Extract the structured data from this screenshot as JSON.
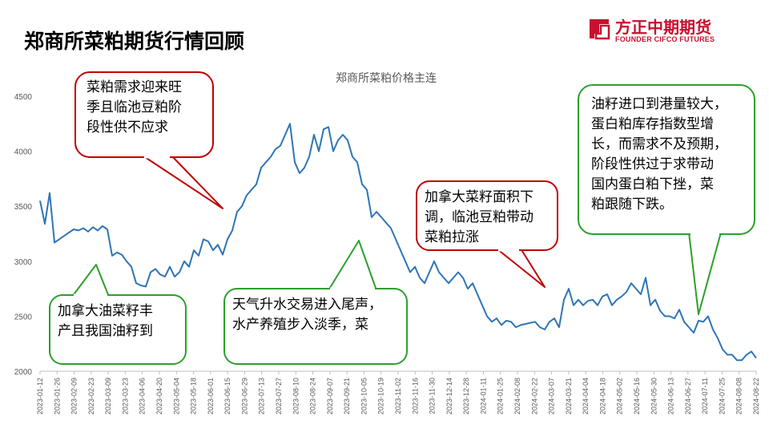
{
  "page": {
    "title": "郑商所菜粕期货行情回顾",
    "brand_cn": "方正中期期货",
    "brand_en": "FOUNDER CIFCO FUTURES",
    "brand_color": "#c8102e"
  },
  "chart_data": {
    "type": "line",
    "title": "郑商所菜粕价格主连",
    "xlabel": "",
    "ylabel": "",
    "ylim": [
      2000,
      4500
    ],
    "yticks": [
      2000,
      2500,
      3000,
      3500,
      4000,
      4500
    ],
    "grid": false,
    "line_color": "#2e75b6",
    "x_ticks": [
      "2023-01-12",
      "2023-01-26",
      "2023-02-09",
      "2023-02-23",
      "2023-03-09",
      "2023-03-23",
      "2023-04-06",
      "2023-04-20",
      "2023-05-04",
      "2023-05-18",
      "2023-06-01",
      "2023-06-15",
      "2023-06-29",
      "2023-07-13",
      "2023-07-27",
      "2023-08-10",
      "2023-08-24",
      "2023-09-07",
      "2023-09-21",
      "2023-10-05",
      "2023-10-19",
      "2023-11-02",
      "2023-11-16",
      "2023-11-30",
      "2023-12-14",
      "2023-12-28",
      "2024-01-11",
      "2024-01-25",
      "2024-02-08",
      "2024-02-22",
      "2024-03-07",
      "2024-03-21",
      "2024-04-04",
      "2024-04-18",
      "2024-05-02",
      "2024-05-16",
      "2024-05-30",
      "2024-06-13",
      "2024-06-27",
      "2024-07-11",
      "2024-07-25",
      "2024-08-08",
      "2024-08-22"
    ],
    "series": [
      {
        "values": [
          3550,
          3340,
          3620,
          3170,
          3200,
          3230,
          3260,
          3290,
          3280,
          3300,
          3270,
          3310,
          3280,
          3320,
          3290,
          3050,
          3080,
          3060,
          3000,
          2950,
          2800,
          2780,
          2770,
          2900,
          2930,
          2880,
          2860,
          2950,
          2860,
          2900,
          3000,
          2950,
          3100,
          3050,
          3200,
          3180,
          3100,
          3150,
          3060,
          3200,
          3280,
          3450,
          3500,
          3600,
          3650,
          3700,
          3850,
          3900,
          3950,
          4020,
          4050,
          4150,
          4250,
          3900,
          3800,
          3850,
          3950,
          4150,
          4000,
          4200,
          4220,
          4000,
          4100,
          4150,
          4100,
          3950,
          3900,
          3700,
          3650,
          3400,
          3450,
          3400,
          3350,
          3300,
          3200,
          3100,
          3000,
          2900,
          2950,
          2850,
          2800,
          2900,
          3000,
          2900,
          2850,
          2800,
          2850,
          2900,
          2850,
          2750,
          2800,
          2700,
          2600,
          2500,
          2450,
          2480,
          2420,
          2460,
          2450,
          2400,
          2420,
          2430,
          2440,
          2450,
          2400,
          2380,
          2450,
          2480,
          2400,
          2650,
          2750,
          2600,
          2650,
          2600,
          2640,
          2650,
          2600,
          2680,
          2700,
          2600,
          2650,
          2680,
          2720,
          2800,
          2750,
          2700,
          2850,
          2600,
          2650,
          2550,
          2500,
          2500,
          2480,
          2560,
          2450,
          2400,
          2350,
          2460,
          2450,
          2500,
          2380,
          2300,
          2200,
          2150,
          2150,
          2100,
          2100,
          2150,
          2180,
          2120
        ]
      }
    ],
    "annotations": [
      {
        "lines": [
          "菜粕需求迎来旺",
          "季且临池豆粕阶",
          "段性供不应求"
        ],
        "color": "#c00000"
      },
      {
        "lines": [
          "加拿大油菜籽丰",
          "产且我国油籽到"
        ],
        "color": "#2ca02c"
      },
      {
        "lines": [
          "天气升水交易进入尾声，",
          "水产养殖步入淡季，菜"
        ],
        "color": "#2ca02c"
      },
      {
        "lines": [
          "加拿大菜籽面积下",
          "调，临池豆粕带动",
          "菜粕拉涨"
        ],
        "color": "#c00000"
      },
      {
        "lines": [
          "油籽进口到港量较大，",
          "蛋白粕库存指数型增",
          "长，而需求不及预期，",
          "阶段性供过于求带动",
          "国内蛋白粕下挫，菜",
          "粕跟随下跌。"
        ],
        "color": "#2ca02c"
      }
    ]
  }
}
